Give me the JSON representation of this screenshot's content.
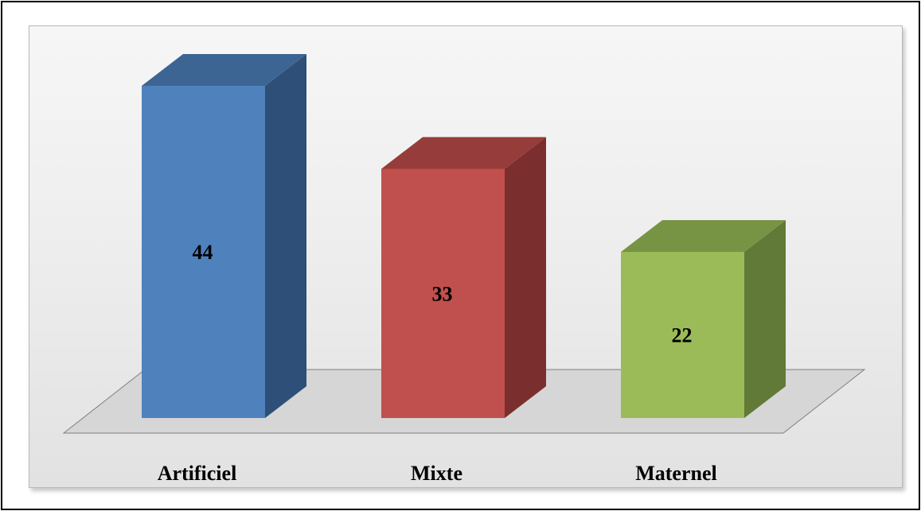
{
  "chart_data": {
    "type": "bar",
    "categories": [
      "Artificiel",
      "Mixte",
      "Maternel"
    ],
    "values": [
      44,
      33,
      22
    ],
    "ylim": [
      0,
      44
    ],
    "grid": false,
    "three_d": true,
    "colors": {
      "Artificiel": {
        "front": "#4f81bd",
        "side": "#2e4f77",
        "top": "#3d6594"
      },
      "Mixte": {
        "front": "#c0504d",
        "side": "#7a2f2e",
        "top": "#963c3a"
      },
      "Maternel": {
        "front": "#9bbb59",
        "side": "#617a37",
        "top": "#779445"
      }
    },
    "floor_color": "#d6d6d6",
    "panel_background": "#eeeeee"
  }
}
